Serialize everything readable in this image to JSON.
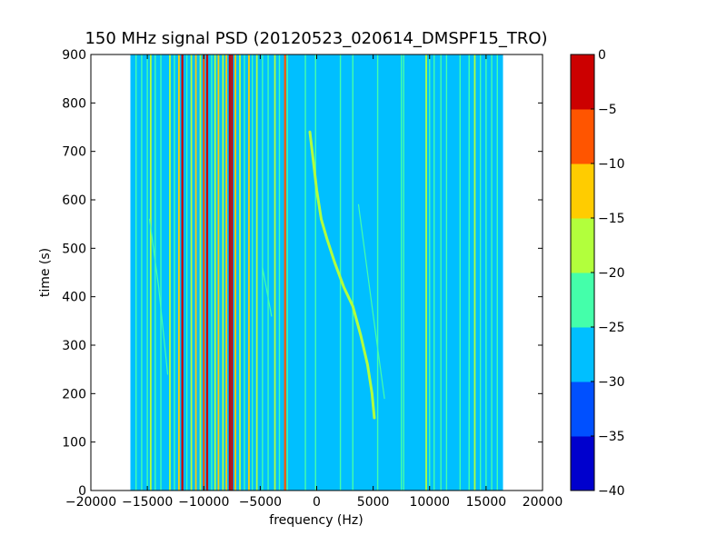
{
  "chart_data": {
    "type": "heatmap",
    "title": "150 MHz signal PSD (20120523_020614_DMSPF15_TRO)",
    "xlabel": "frequency (Hz)",
    "ylabel": "time (s)",
    "xlim": [
      -20000,
      20000
    ],
    "ylim": [
      0,
      900
    ],
    "x_ticks": [
      -20000,
      -15000,
      -10000,
      -5000,
      0,
      5000,
      10000,
      15000,
      20000
    ],
    "x_tick_labels": [
      "−20000",
      "−15000",
      "−10000",
      "−5000",
      "0",
      "5000",
      "10000",
      "15000",
      "20000"
    ],
    "y_ticks": [
      0,
      100,
      200,
      300,
      400,
      500,
      600,
      700,
      800,
      900
    ],
    "y_tick_labels": [
      "0",
      "100",
      "200",
      "300",
      "400",
      "500",
      "600",
      "700",
      "800",
      "900"
    ],
    "data_extent": {
      "freq_min": -16500,
      "freq_max": 16500,
      "time_min": 0,
      "time_max": 900
    },
    "background_level": -27.5,
    "colorbar": {
      "levels": [
        -40,
        -35,
        -30,
        -25,
        -20,
        -15,
        -10,
        -5,
        0
      ],
      "tick_labels": [
        "−40",
        "−35",
        "−30",
        "−25",
        "−20",
        "−15",
        "−10",
        "−5",
        "0"
      ],
      "colors": [
        "#0000cd",
        "#0050ff",
        "#00bfff",
        "#44ffaa",
        "#b2ff3c",
        "#ffcc00",
        "#ff5500",
        "#cc0000"
      ]
    },
    "vertical_lines": [
      {
        "freq": -16000,
        "level": -22.5
      },
      {
        "freq": -15500,
        "level": -22.5
      },
      {
        "freq": -15000,
        "level": -22.5
      },
      {
        "freq": -14700,
        "level": -17.5
      },
      {
        "freq": -14300,
        "level": -22.5
      },
      {
        "freq": -13800,
        "level": -22.5
      },
      {
        "freq": -13000,
        "level": -17.5
      },
      {
        "freq": -12600,
        "level": -22.5
      },
      {
        "freq": -12200,
        "level": -12.5
      },
      {
        "freq": -11900,
        "level": -2.5
      },
      {
        "freq": -11500,
        "level": -22.5
      },
      {
        "freq": -11100,
        "level": -17.5
      },
      {
        "freq": -10700,
        "level": -12.5
      },
      {
        "freq": -10300,
        "level": -17.5
      },
      {
        "freq": -10000,
        "level": -7.5
      },
      {
        "freq": -9700,
        "level": -2.5
      },
      {
        "freq": -9300,
        "level": -22.5
      },
      {
        "freq": -9000,
        "level": -17.5
      },
      {
        "freq": -8700,
        "level": -12.5
      },
      {
        "freq": -8300,
        "level": -17.5
      },
      {
        "freq": -8000,
        "level": -12.5
      },
      {
        "freq": -7700,
        "level": -2.5
      },
      {
        "freq": -7500,
        "level": -2.5
      },
      {
        "freq": -7200,
        "level": -12.5
      },
      {
        "freq": -6800,
        "level": -17.5
      },
      {
        "freq": -6400,
        "level": -22.5
      },
      {
        "freq": -6000,
        "level": -12.5
      },
      {
        "freq": -5700,
        "level": -22.5
      },
      {
        "freq": -5300,
        "level": -17.5
      },
      {
        "freq": -4800,
        "level": -22.5
      },
      {
        "freq": -4300,
        "level": -22.5
      },
      {
        "freq": -3700,
        "level": -17.5
      },
      {
        "freq": -3300,
        "level": -22.5
      },
      {
        "freq": -2800,
        "level": -7.5
      },
      {
        "freq": -2600,
        "level": -22.5
      },
      {
        "freq": -1000,
        "level": -22.5
      },
      {
        "freq": -100,
        "level": -22.5
      },
      {
        "freq": 2100,
        "level": -22.5
      },
      {
        "freq": 3200,
        "level": -22.5
      },
      {
        "freq": 5400,
        "level": -22.5
      },
      {
        "freq": 7500,
        "level": -22.5
      },
      {
        "freq": 7700,
        "level": -22.5
      },
      {
        "freq": 9700,
        "level": -17.5
      },
      {
        "freq": 10000,
        "level": -22.5
      },
      {
        "freq": 10400,
        "level": -22.5
      },
      {
        "freq": 11000,
        "level": -22.5
      },
      {
        "freq": 11500,
        "level": -22.5
      },
      {
        "freq": 12700,
        "level": -22.5
      },
      {
        "freq": 13500,
        "level": -22.5
      },
      {
        "freq": 14000,
        "level": -17.5
      },
      {
        "freq": 14500,
        "level": -22.5
      },
      {
        "freq": 15000,
        "level": -22.5
      },
      {
        "freq": 15500,
        "level": -22.5
      },
      {
        "freq": 16000,
        "level": -22.5
      }
    ],
    "doppler_trace": {
      "level": -17.5,
      "points": [
        [
          -600,
          740
        ],
        [
          -300,
          680
        ],
        [
          0,
          620
        ],
        [
          400,
          560
        ],
        [
          900,
          520
        ],
        [
          1600,
          470
        ],
        [
          2400,
          420
        ],
        [
          3200,
          380
        ],
        [
          3900,
          320
        ],
        [
          4500,
          260
        ],
        [
          4900,
          200
        ],
        [
          5100,
          150
        ]
      ]
    },
    "faint_traces": [
      {
        "level": -22.5,
        "points": [
          [
            3700,
            590
          ],
          [
            4500,
            450
          ],
          [
            5300,
            310
          ],
          [
            6000,
            190
          ]
        ]
      },
      {
        "level": -22.5,
        "points": [
          [
            -14800,
            560
          ],
          [
            -14000,
            420
          ],
          [
            -13200,
            240
          ]
        ]
      },
      {
        "level": -22.5,
        "points": [
          [
            -4800,
            460
          ],
          [
            -4000,
            360
          ]
        ]
      }
    ]
  }
}
